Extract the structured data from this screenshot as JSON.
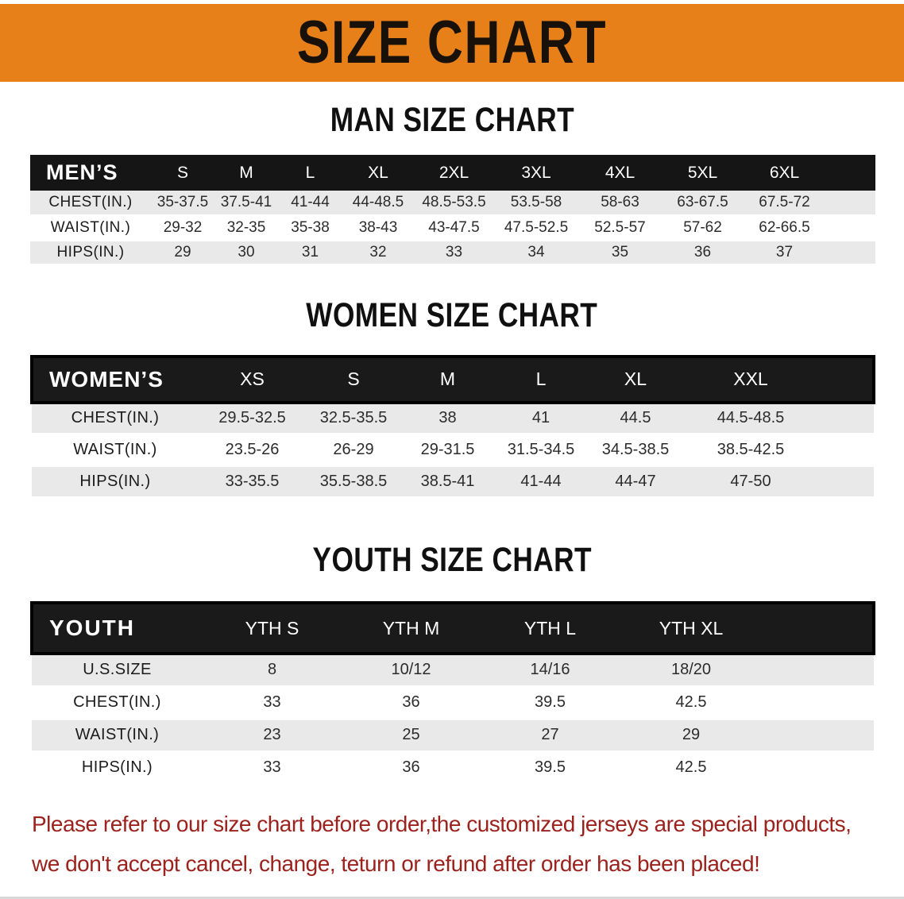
{
  "banner": {
    "title": "SIZE CHART",
    "background_color": "#E8801A"
  },
  "sections": [
    {
      "heading": "MAN SIZE CHART",
      "table": {
        "header_label": "MEN’S",
        "columns": [
          "S",
          "M",
          "L",
          "XL",
          "2XL",
          "3XL",
          "4XL",
          "5XL",
          "6XL"
        ],
        "rows": [
          {
            "label": "CHEST(IN.)",
            "values": [
              "35-37.5",
              "37.5-41",
              "41-44",
              "44-48.5",
              "48.5-53.5",
              "53.5-58",
              "58-63",
              "63-67.5",
              "67.5-72"
            ]
          },
          {
            "label": "WAIST(IN.)",
            "values": [
              "29-32",
              "32-35",
              "35-38",
              "38-43",
              "43-47.5",
              "47.5-52.5",
              "52.5-57",
              "57-62",
              "62-66.5"
            ]
          },
          {
            "label": "HIPS(IN.)",
            "values": [
              "29",
              "30",
              "31",
              "32",
              "33",
              "34",
              "35",
              "36",
              "37"
            ]
          }
        ]
      }
    },
    {
      "heading": "WOMEN SIZE CHART",
      "table": {
        "header_label": "WOMEN’S",
        "columns": [
          "XS",
          "S",
          "M",
          "L",
          "XL",
          "XXL"
        ],
        "rows": [
          {
            "label": "CHEST(IN.)",
            "values": [
              "29.5-32.5",
              "32.5-35.5",
              "38",
              "41",
              "44.5",
              "44.5-48.5"
            ]
          },
          {
            "label": "WAIST(IN.)",
            "values": [
              "23.5-26",
              "26-29",
              "29-31.5",
              "31.5-34.5",
              "34.5-38.5",
              "38.5-42.5"
            ]
          },
          {
            "label": "HIPS(IN.)",
            "values": [
              "33-35.5",
              "35.5-38.5",
              "38.5-41",
              "41-44",
              "44-47",
              "47-50"
            ]
          }
        ]
      }
    },
    {
      "heading": "YOUTH SIZE CHART",
      "table": {
        "header_label": "YOUTH",
        "columns": [
          "YTH S",
          "YTH M",
          "YTH L",
          "YTH XL"
        ],
        "rows": [
          {
            "label": "U.S.SIZE",
            "values": [
              "8",
              "10/12",
              "14/16",
              "18/20"
            ]
          },
          {
            "label": "CHEST(IN.)",
            "values": [
              "33",
              "36",
              "39.5",
              "42.5"
            ]
          },
          {
            "label": "WAIST(IN.)",
            "values": [
              "23",
              "25",
              "27",
              "29"
            ]
          },
          {
            "label": "HIPS(IN.)",
            "values": [
              "33",
              "36",
              "39.5",
              "42.5"
            ]
          }
        ]
      }
    }
  ],
  "disclaimer": {
    "lines": [
      "Please refer to our size chart before order,the customized jerseys are special products,",
      "we don't accept cancel, change, teturn or refund after order has been placed!"
    ],
    "text_color": "#9B221D"
  },
  "colors": {
    "table_header_band": "#151515",
    "row_stripe": "#E9E9E9",
    "heading_text": "#101010"
  }
}
